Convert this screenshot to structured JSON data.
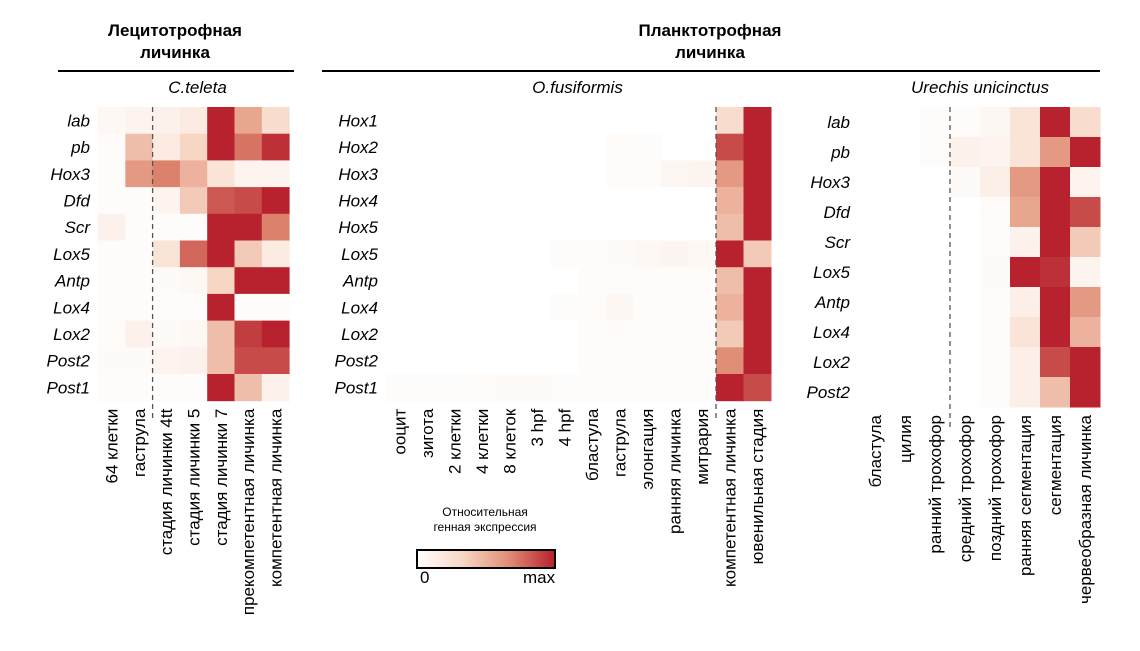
{
  "header": {
    "lecitho": "Лецитотрофная\nличинка",
    "plankto": "Планктотрофная\nличинка"
  },
  "legend": {
    "title": "Относительная\nгенная экспрессия",
    "min_label": "0",
    "max_label": "max",
    "colors": [
      "#ffffff",
      "#b8222e"
    ]
  },
  "chart_data": [
    {
      "type": "heatmap",
      "title": "C.teleta",
      "rows": [
        "lab",
        "pb",
        "Hox3",
        "Dfd",
        "Scr",
        "Lox5",
        "Antp",
        "Lox4",
        "Lox2",
        "Post2",
        "Post1"
      ],
      "columns": [
        "64 клетки",
        "гаструла",
        "стадия личинки 4tt",
        "стадия личинки 5",
        "стадия личинки 7",
        "прекомпетентная личинка",
        "компетентная личинка"
      ],
      "divider_after_column": 1,
      "values": [
        [
          0.05,
          0.08,
          0.1,
          0.15,
          1.0,
          0.5,
          0.25
        ],
        [
          0.03,
          0.4,
          0.15,
          0.3,
          1.0,
          0.7,
          0.95
        ],
        [
          0.02,
          0.55,
          0.65,
          0.45,
          0.2,
          0.08,
          0.08
        ],
        [
          0.02,
          0.02,
          0.08,
          0.35,
          0.8,
          0.85,
          1.0
        ],
        [
          0.1,
          0.02,
          0.02,
          0.02,
          1.0,
          1.0,
          0.65
        ],
        [
          0.02,
          0.02,
          0.2,
          0.75,
          1.0,
          0.35,
          0.15
        ],
        [
          0.02,
          0.02,
          0.04,
          0.05,
          0.3,
          1.0,
          1.0
        ],
        [
          0.02,
          0.02,
          0.02,
          0.02,
          1.0,
          0.02,
          0.02
        ],
        [
          0.03,
          0.1,
          0.04,
          0.05,
          0.4,
          0.9,
          1.0
        ],
        [
          0.04,
          0.04,
          0.08,
          0.1,
          0.4,
          0.85,
          0.85
        ],
        [
          0.02,
          0.02,
          0.02,
          0.02,
          1.0,
          0.4,
          0.1
        ]
      ]
    },
    {
      "type": "heatmap",
      "title": "O.fusiformis",
      "rows": [
        "Hox1",
        "Hox2",
        "Hox3",
        "Hox4",
        "Hox5",
        "Lox5",
        "Antp",
        "Lox4",
        "Lox2",
        "Post2",
        "Post1"
      ],
      "columns": [
        "ооцит",
        "зигота",
        "2 клетки",
        "4 клетки",
        "8 клеток",
        "3 hpf",
        "4 hpf",
        "бластула",
        "гаструла",
        "элонгация",
        "ранняя личинка",
        "митрария",
        "компетентная личинка",
        "ювенильная стадия"
      ],
      "divider_after_column": 11,
      "values": [
        [
          0,
          0,
          0,
          0,
          0,
          0,
          0,
          0,
          0,
          0,
          0,
          0,
          0.25,
          1.0
        ],
        [
          0,
          0,
          0,
          0,
          0,
          0,
          0,
          0,
          0.03,
          0.02,
          0,
          0,
          0.85,
          1.0
        ],
        [
          0,
          0,
          0,
          0,
          0,
          0,
          0,
          0,
          0.02,
          0.03,
          0.06,
          0.08,
          0.55,
          1.0
        ],
        [
          0,
          0,
          0,
          0,
          0,
          0,
          0,
          0,
          0,
          0,
          0,
          0,
          0.45,
          1.0
        ],
        [
          0,
          0,
          0,
          0,
          0,
          0,
          0,
          0,
          0,
          0,
          0,
          0,
          0.4,
          1.0
        ],
        [
          0,
          0,
          0,
          0,
          0,
          0,
          0.02,
          0.03,
          0.04,
          0.05,
          0.07,
          0.05,
          1.0,
          0.35
        ],
        [
          0,
          0,
          0,
          0,
          0,
          0,
          0,
          0.02,
          0.02,
          0.02,
          0.03,
          0.03,
          0.4,
          1.0
        ],
        [
          0,
          0,
          0,
          0,
          0,
          0,
          0.02,
          0.03,
          0.06,
          0.03,
          0.02,
          0.02,
          0.45,
          1.0
        ],
        [
          0,
          0,
          0,
          0,
          0,
          0,
          0,
          0.02,
          0.03,
          0.02,
          0.02,
          0.02,
          0.35,
          1.0
        ],
        [
          0,
          0,
          0,
          0,
          0,
          0,
          0,
          0.02,
          0.03,
          0.03,
          0.03,
          0.03,
          0.6,
          1.0
        ],
        [
          0.02,
          0.02,
          0.02,
          0.03,
          0.04,
          0.04,
          0.02,
          0.02,
          0.03,
          0.03,
          0.02,
          0.02,
          1.0,
          0.85
        ]
      ]
    },
    {
      "type": "heatmap",
      "title": "Urechis unicinctus",
      "rows": [
        "lab",
        "pb",
        "Hox3",
        "Dfd",
        "Scr",
        "Lox5",
        "Antp",
        "Lox4",
        "Lox2",
        "Post2"
      ],
      "columns": [
        "бластула",
        "цилия",
        "ранний трохофор",
        "средний трохофор",
        "поздний трохофор",
        "ранняя сегментация",
        "сегментация",
        "червеобразная личинка"
      ],
      "divider_after_column": 2,
      "values": [
        [
          0,
          0,
          0.02,
          0.03,
          0.06,
          0.2,
          1.0,
          0.25
        ],
        [
          0,
          0,
          0.02,
          0.1,
          0.08,
          0.2,
          0.55,
          1.0
        ],
        [
          0,
          0,
          0,
          0.04,
          0.12,
          0.55,
          1.0,
          0.08
        ],
        [
          0,
          0,
          0,
          0,
          0.03,
          0.5,
          1.0,
          0.85
        ],
        [
          0,
          0,
          0,
          0,
          0.02,
          0.1,
          1.0,
          0.35
        ],
        [
          0,
          0,
          0,
          0,
          0.04,
          1.0,
          0.95,
          0.08
        ],
        [
          0,
          0,
          0,
          0,
          0.02,
          0.12,
          1.0,
          0.55
        ],
        [
          0,
          0,
          0,
          0,
          0.02,
          0.2,
          1.0,
          0.45
        ],
        [
          0,
          0,
          0,
          0,
          0.02,
          0.12,
          0.85,
          1.0
        ],
        [
          0,
          0,
          0,
          0,
          0.02,
          0.12,
          0.4,
          1.0
        ]
      ]
    }
  ]
}
